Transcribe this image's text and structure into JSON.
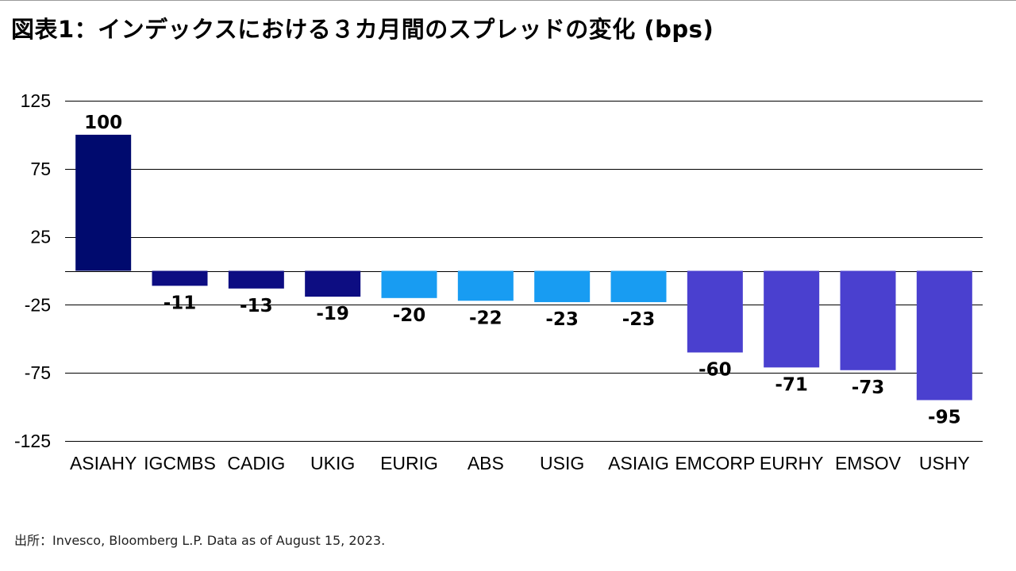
{
  "title": "図表1：インデックスにおける３カ月間のスプレッドの変化 (bps)",
  "source": "出所：Invesco, Bloomberg L.P. Data as of August 15, 2023.",
  "colors": {
    "asia_hy": "#000a6e",
    "group_dark": "#0d0d82",
    "group_light": "#189cf2",
    "group_purple": "#4a40cf",
    "grid": "#000000",
    "text": "#000000"
  },
  "chart_data": {
    "type": "bar",
    "title": "図表1：インデックスにおける３カ月間のスプレッドの変化 (bps)",
    "xlabel": "",
    "ylabel": "",
    "ylim": [
      -125,
      125
    ],
    "yticks": [
      125,
      75,
      25,
      -25,
      -75,
      -125
    ],
    "gridlines": [
      125,
      75,
      25,
      0,
      -25,
      -75,
      -125
    ],
    "grid": true,
    "categories": [
      "ASIAHY",
      "IGCMBS",
      "CADIG",
      "UKIG",
      "EURIG",
      "ABS",
      "USIG",
      "ASIAIG",
      "EMCORP",
      "EURHY",
      "EMSOV",
      "USHY"
    ],
    "values": [
      100,
      -11,
      -13,
      -19,
      -20,
      -22,
      -23,
      -23,
      -60,
      -71,
      -73,
      -95
    ],
    "data_labels": [
      "100",
      "-11",
      "-13",
      "-19",
      "-20",
      "-22",
      "-23",
      "-23",
      "-60",
      "-71",
      "-73",
      "-95"
    ],
    "bar_colors": [
      "#000a6e",
      "#0d0d82",
      "#0d0d82",
      "#0d0d82",
      "#189cf2",
      "#189cf2",
      "#189cf2",
      "#189cf2",
      "#4a40cf",
      "#4a40cf",
      "#4a40cf",
      "#4a40cf"
    ]
  }
}
